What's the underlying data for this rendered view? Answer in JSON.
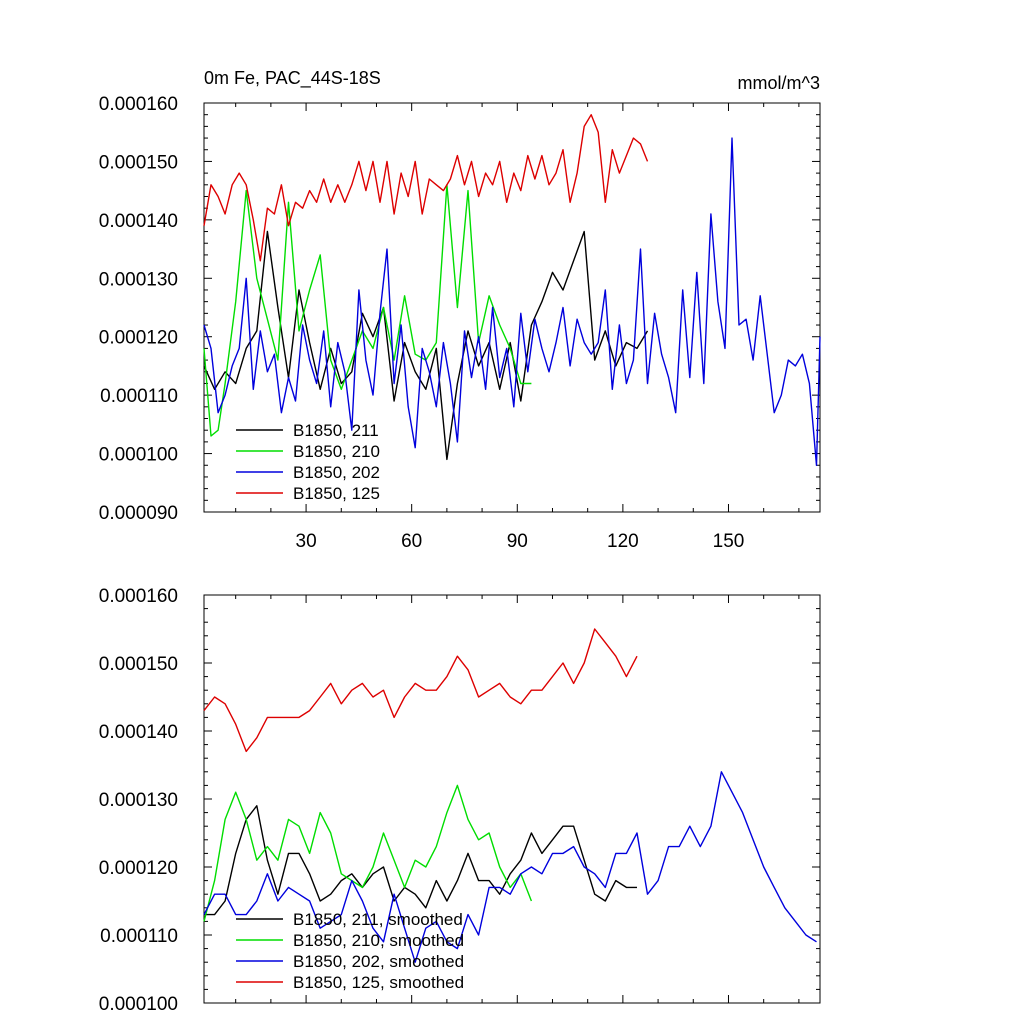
{
  "chart_data": [
    {
      "type": "line",
      "title": "0m Fe, PAC_44S-18S",
      "units": "mmol/m^3",
      "xlim": [
        1,
        176
      ],
      "ylim": [
        9e-05,
        0.00016
      ],
      "xticks": [
        "30",
        "60",
        "90",
        "120",
        "150"
      ],
      "yticks": [
        "0.000090",
        "0.000100",
        "0.000110",
        "0.000120",
        "0.000130",
        "0.000140",
        "0.000150",
        "0.000160"
      ],
      "legend_position": "lower-left",
      "series": [
        {
          "name": "B1850, 211",
          "color": "#000000",
          "x": [
            1,
            4,
            7,
            10,
            13,
            16,
            19,
            22,
            25,
            28,
            31,
            34,
            37,
            40,
            43,
            46,
            49,
            52,
            55,
            58,
            61,
            64,
            67,
            70,
            73,
            76,
            79,
            82,
            85,
            88,
            91,
            94,
            97,
            100,
            103,
            106,
            109,
            112,
            115,
            118,
            121,
            124,
            127
          ],
          "values": [
            0.000115,
            0.000111,
            0.000114,
            0.000112,
            0.000118,
            0.000121,
            0.000138,
            0.000125,
            0.000113,
            0.000128,
            0.000119,
            0.000111,
            0.000118,
            0.000112,
            0.000114,
            0.000124,
            0.00012,
            0.000125,
            0.000109,
            0.000119,
            0.000114,
            0.000111,
            0.000118,
            9.9e-05,
            0.000112,
            0.000121,
            0.000115,
            0.000119,
            0.000111,
            0.000119,
            0.000109,
            0.000122,
            0.000126,
            0.000131,
            0.000128,
            0.000133,
            0.000138,
            0.000116,
            0.000121,
            0.000115,
            0.000119,
            0.000118,
            0.000121
          ]
        },
        {
          "name": "B1850, 210",
          "color": "#00dd00",
          "x": [
            1,
            3,
            5,
            7,
            10,
            13,
            16,
            19,
            22,
            25,
            28,
            31,
            34,
            37,
            40,
            43,
            46,
            49,
            52,
            55,
            58,
            61,
            64,
            67,
            70,
            73,
            76,
            79,
            82,
            85,
            88,
            91,
            94
          ],
          "values": [
            0.000118,
            0.000103,
            0.000104,
            0.000112,
            0.000126,
            0.000145,
            0.00013,
            0.000123,
            0.000116,
            0.000143,
            0.000121,
            0.000128,
            0.000134,
            0.000116,
            0.000111,
            0.000116,
            0.000121,
            0.000118,
            0.000125,
            0.000116,
            0.000127,
            0.000117,
            0.000116,
            0.000119,
            0.000146,
            0.000125,
            0.000145,
            0.000119,
            0.000127,
            0.000122,
            0.000118,
            0.000112,
            0.000112
          ]
        },
        {
          "name": "B1850, 202",
          "color": "#0000dd",
          "x": [
            1,
            3,
            5,
            7,
            9,
            11,
            13,
            15,
            17,
            19,
            21,
            23,
            25,
            27,
            29,
            31,
            33,
            35,
            37,
            39,
            41,
            43,
            45,
            47,
            49,
            51,
            53,
            55,
            57,
            59,
            61,
            63,
            65,
            67,
            69,
            71,
            73,
            75,
            77,
            79,
            81,
            83,
            85,
            87,
            89,
            91,
            93,
            95,
            97,
            99,
            101,
            103,
            105,
            107,
            109,
            111,
            113,
            115,
            117,
            119,
            121,
            123,
            125,
            127,
            129,
            131,
            133,
            135,
            137,
            139,
            141,
            143,
            145,
            147,
            149,
            151,
            153,
            155,
            157,
            159,
            161,
            163,
            165,
            167,
            169,
            171,
            173,
            175,
            176
          ],
          "values": [
            0.000122,
            0.000118,
            0.000107,
            0.00011,
            0.000115,
            0.000118,
            0.00013,
            0.000111,
            0.000121,
            0.000114,
            0.000117,
            0.000107,
            0.000113,
            0.000109,
            0.000122,
            0.000116,
            0.000112,
            0.000121,
            0.000108,
            0.000119,
            0.000114,
            0.000104,
            0.000128,
            0.000116,
            0.00011,
            0.000124,
            0.000135,
            0.000112,
            0.000122,
            0.000108,
            0.000101,
            0.000118,
            0.000114,
            0.000108,
            0.000119,
            0.000112,
            0.000102,
            0.000121,
            0.000113,
            0.00012,
            0.000111,
            0.000125,
            0.000113,
            0.000118,
            0.000108,
            0.000124,
            0.000114,
            0.000123,
            0.000118,
            0.000114,
            0.000119,
            0.000125,
            0.000115,
            0.000123,
            0.000119,
            0.000117,
            0.000119,
            0.000128,
            0.000111,
            0.000122,
            0.000112,
            0.000116,
            0.000135,
            0.000112,
            0.000124,
            0.000117,
            0.000113,
            0.000107,
            0.000128,
            0.000113,
            0.000131,
            0.000112,
            0.000141,
            0.000126,
            0.000118,
            0.000154,
            0.000122,
            0.000123,
            0.000116,
            0.000127,
            0.000117,
            0.000107,
            0.00011,
            0.000116,
            0.000115,
            0.000117,
            0.000112,
            9.8e-05,
            0.00012
          ]
        },
        {
          "name": "B1850, 125",
          "color": "#dd0000",
          "x": [
            1,
            3,
            5,
            7,
            9,
            11,
            13,
            15,
            17,
            19,
            21,
            23,
            25,
            27,
            29,
            31,
            33,
            35,
            37,
            39,
            41,
            43,
            45,
            47,
            49,
            51,
            53,
            55,
            57,
            59,
            61,
            63,
            65,
            67,
            69,
            71,
            73,
            75,
            77,
            79,
            81,
            83,
            85,
            87,
            89,
            91,
            93,
            95,
            97,
            99,
            101,
            103,
            105,
            107,
            109,
            111,
            113,
            115,
            117,
            119,
            121,
            123,
            125,
            127
          ],
          "values": [
            0.000139,
            0.000146,
            0.000144,
            0.000141,
            0.000146,
            0.000148,
            0.000146,
            0.00014,
            0.000133,
            0.000142,
            0.000141,
            0.000146,
            0.000139,
            0.000143,
            0.000142,
            0.000145,
            0.000143,
            0.000147,
            0.000143,
            0.000146,
            0.000143,
            0.000146,
            0.00015,
            0.000145,
            0.00015,
            0.000143,
            0.00015,
            0.000141,
            0.000148,
            0.000144,
            0.00015,
            0.000141,
            0.000147,
            0.000146,
            0.000145,
            0.000147,
            0.000151,
            0.000146,
            0.00015,
            0.000144,
            0.000148,
            0.000146,
            0.00015,
            0.000143,
            0.000148,
            0.000145,
            0.000151,
            0.000147,
            0.000151,
            0.000146,
            0.000148,
            0.000152,
            0.000143,
            0.000148,
            0.000156,
            0.000158,
            0.000155,
            0.000143,
            0.000152,
            0.000148,
            0.000151,
            0.000154,
            0.000153,
            0.00015
          ]
        }
      ]
    },
    {
      "type": "line",
      "xlim": [
        1,
        176
      ],
      "ylim": [
        0.0001,
        0.00016
      ],
      "yticks": [
        "0.000100",
        "0.000110",
        "0.000120",
        "0.000130",
        "0.000140",
        "0.000150",
        "0.000160"
      ],
      "legend_position": "lower-left",
      "series": [
        {
          "name": "B1850, 211, smoothed",
          "color": "#000000",
          "x": [
            1,
            4,
            7,
            10,
            13,
            16,
            19,
            22,
            25,
            28,
            31,
            34,
            37,
            40,
            43,
            46,
            49,
            52,
            55,
            58,
            61,
            64,
            67,
            70,
            73,
            76,
            79,
            82,
            85,
            88,
            91,
            94,
            97,
            100,
            103,
            106,
            109,
            112,
            115,
            118,
            121,
            124
          ],
          "values": [
            0.000113,
            0.000113,
            0.000115,
            0.000122,
            0.000127,
            0.000129,
            0.000121,
            0.000116,
            0.000122,
            0.000122,
            0.000119,
            0.000115,
            0.000116,
            0.000118,
            0.000119,
            0.000117,
            0.000119,
            0.00012,
            0.000115,
            0.000117,
            0.000116,
            0.000114,
            0.000118,
            0.000115,
            0.000118,
            0.000122,
            0.000118,
            0.000118,
            0.000116,
            0.000119,
            0.000121,
            0.000125,
            0.000122,
            0.000124,
            0.000126,
            0.000126,
            0.000121,
            0.000116,
            0.000115,
            0.000118,
            0.000117,
            0.000117
          ]
        },
        {
          "name": "B1850, 210, smoothed",
          "color": "#00dd00",
          "x": [
            1,
            4,
            7,
            10,
            13,
            16,
            19,
            22,
            25,
            28,
            31,
            34,
            37,
            40,
            43,
            46,
            49,
            52,
            55,
            58,
            61,
            64,
            67,
            70,
            73,
            76,
            79,
            82,
            85,
            88,
            91,
            94
          ],
          "values": [
            0.000112,
            0.000118,
            0.000127,
            0.000131,
            0.000127,
            0.000121,
            0.000123,
            0.000121,
            0.000127,
            0.000126,
            0.000122,
            0.000128,
            0.000125,
            0.000119,
            0.000118,
            0.000117,
            0.00012,
            0.000125,
            0.000121,
            0.000117,
            0.000121,
            0.00012,
            0.000123,
            0.000128,
            0.000132,
            0.000127,
            0.000124,
            0.000125,
            0.00012,
            0.000117,
            0.000119,
            0.000115
          ]
        },
        {
          "name": "B1850, 202, smoothed",
          "color": "#0000dd",
          "x": [
            1,
            4,
            7,
            10,
            13,
            16,
            19,
            22,
            25,
            28,
            31,
            34,
            37,
            40,
            43,
            46,
            49,
            52,
            55,
            58,
            61,
            64,
            67,
            70,
            73,
            76,
            79,
            82,
            85,
            88,
            91,
            94,
            97,
            100,
            103,
            106,
            109,
            112,
            115,
            118,
            121,
            124,
            127,
            130,
            133,
            136,
            139,
            142,
            145,
            148,
            151,
            154,
            157,
            160,
            163,
            166,
            169,
            172,
            175
          ],
          "values": [
            0.000113,
            0.000116,
            0.000116,
            0.000113,
            0.000113,
            0.000115,
            0.000119,
            0.000115,
            0.000117,
            0.000116,
            0.000115,
            0.000111,
            0.000112,
            0.000113,
            0.000118,
            0.000115,
            0.000111,
            0.000109,
            0.000116,
            0.000111,
            0.000106,
            0.000111,
            0.000112,
            0.000109,
            0.000108,
            0.000113,
            0.00011,
            0.000117,
            0.000117,
            0.000116,
            0.000119,
            0.00012,
            0.000119,
            0.000122,
            0.000122,
            0.000123,
            0.00012,
            0.000119,
            0.000117,
            0.000122,
            0.000122,
            0.000125,
            0.000116,
            0.000118,
            0.000123,
            0.000123,
            0.000126,
            0.000123,
            0.000126,
            0.000134,
            0.000131,
            0.000128,
            0.000124,
            0.00012,
            0.000117,
            0.000114,
            0.000112,
            0.00011,
            0.000109
          ]
        },
        {
          "name": "B1850, 125, smoothed",
          "color": "#dd0000",
          "x": [
            1,
            4,
            7,
            10,
            13,
            16,
            19,
            22,
            25,
            28,
            31,
            34,
            37,
            40,
            43,
            46,
            49,
            52,
            55,
            58,
            61,
            64,
            67,
            70,
            73,
            76,
            79,
            82,
            85,
            88,
            91,
            94,
            97,
            100,
            103,
            106,
            109,
            112,
            115,
            118,
            121,
            124
          ],
          "values": [
            0.000143,
            0.000145,
            0.000144,
            0.000141,
            0.000137,
            0.000139,
            0.000142,
            0.000142,
            0.000142,
            0.000142,
            0.000143,
            0.000145,
            0.000147,
            0.000144,
            0.000146,
            0.000147,
            0.000145,
            0.000146,
            0.000142,
            0.000145,
            0.000147,
            0.000146,
            0.000146,
            0.000148,
            0.000151,
            0.000149,
            0.000145,
            0.000146,
            0.000147,
            0.000145,
            0.000144,
            0.000146,
            0.000146,
            0.000148,
            0.00015,
            0.000147,
            0.00015,
            0.000155,
            0.000153,
            0.000151,
            0.000148,
            0.000151
          ]
        }
      ]
    }
  ]
}
